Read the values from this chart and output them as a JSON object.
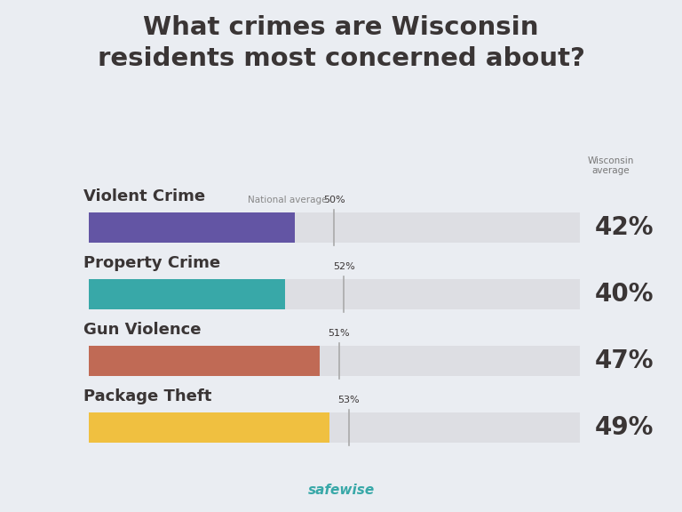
{
  "title": "What crimes are Wisconsin\nresidents most concerned about?",
  "categories": [
    "Violent Crime",
    "Property Crime",
    "Gun Violence",
    "Package Theft"
  ],
  "wisconsin_values": [
    42,
    40,
    47,
    49
  ],
  "national_values": [
    50,
    52,
    51,
    53
  ],
  "bar_colors": [
    "#6355a4",
    "#38a8a8",
    "#c06a55",
    "#f0c040"
  ],
  "bg_color": "#eaedf2",
  "bar_bg_color": "#dddee3",
  "bar_max": 100,
  "wisconsin_label": "Wisconsin\naverage",
  "national_label": "National average",
  "title_fontsize": 21,
  "category_fontsize": 13,
  "value_fontsize": 20,
  "nat_pct_fontsize": 8,
  "nat_label_fontsize": 7.5,
  "footer_text": "safewise",
  "national_line_color": "#aaaaaa",
  "text_color": "#3a3535",
  "footer_color": "#38a8a8"
}
